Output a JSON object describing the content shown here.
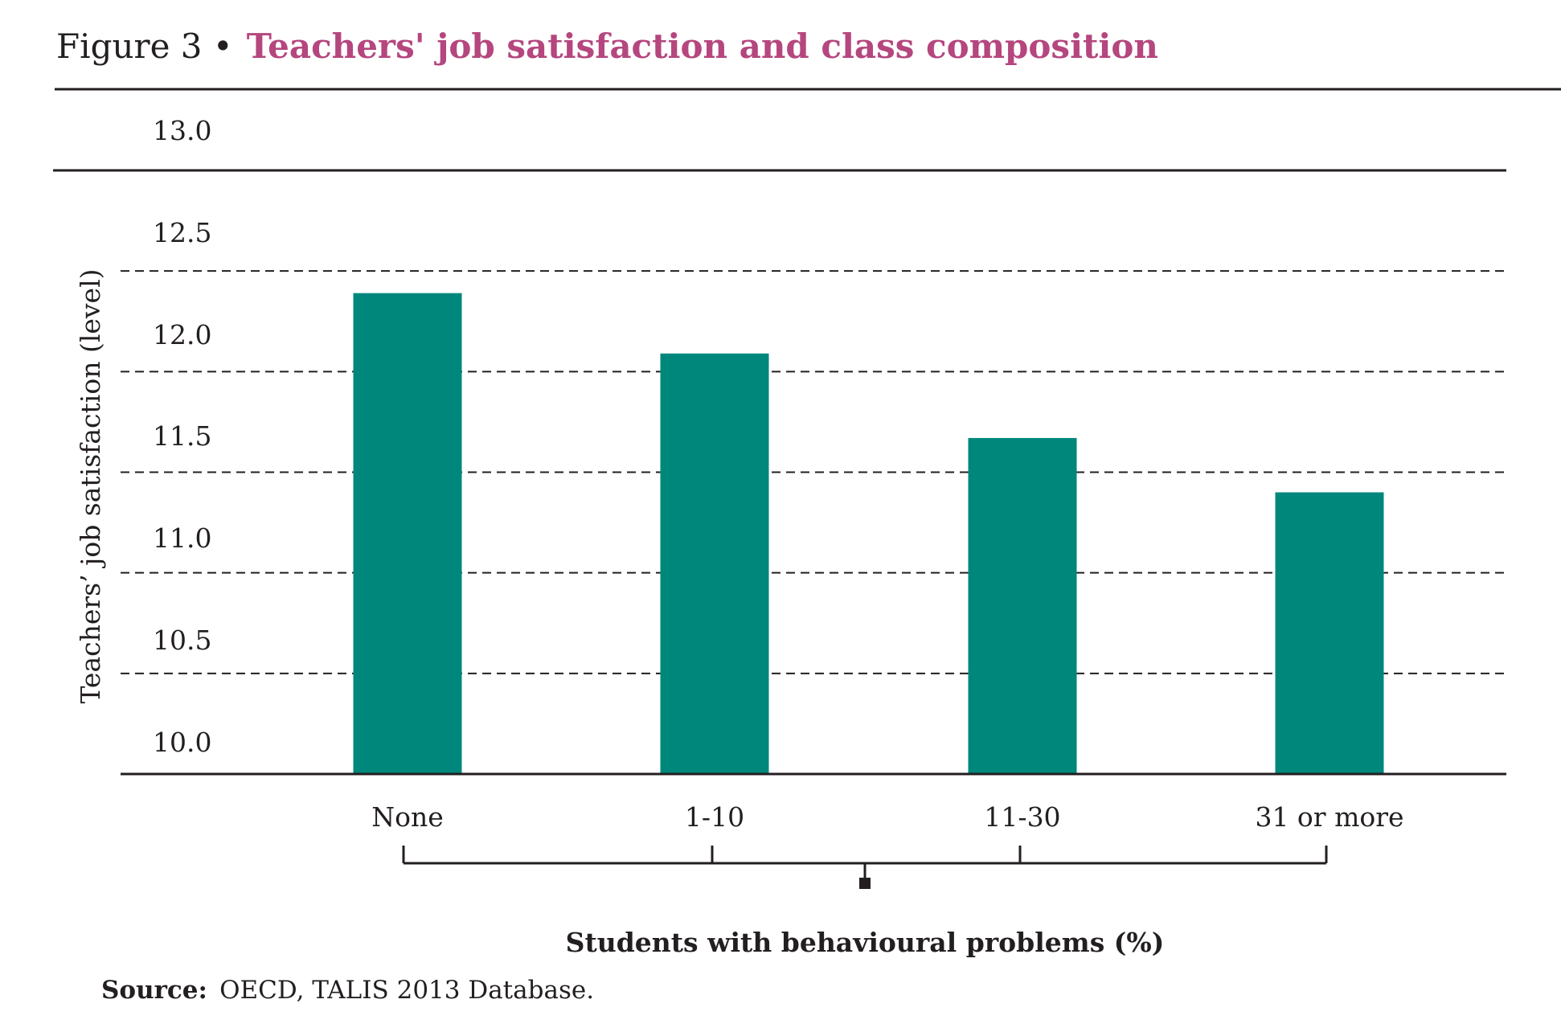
{
  "figure": {
    "prefix": "Figure 3 •",
    "title": "Teachers' job satisfaction and class composition"
  },
  "source": {
    "label": "Source:",
    "text": "OECD, TALIS 2013 Database."
  },
  "colors": {
    "bar": "#00877c",
    "title": "#b5467e",
    "axis": "#231f20"
  },
  "chart_data": {
    "type": "bar",
    "categories": [
      "None",
      "1-10",
      "11-30",
      "31 or more"
    ],
    "values": [
      12.39,
      12.09,
      11.67,
      11.4
    ],
    "ylabel": "Teachers’ job satisfaction (level)",
    "xlabel": "Students with behavioural problems (%)",
    "ylim": [
      10.0,
      13.0
    ],
    "yticks": [
      "10.0",
      "10.5",
      "11.0",
      "11.5",
      "12.0",
      "12.5",
      "13.0"
    ],
    "grid": true,
    "legend": "none"
  }
}
